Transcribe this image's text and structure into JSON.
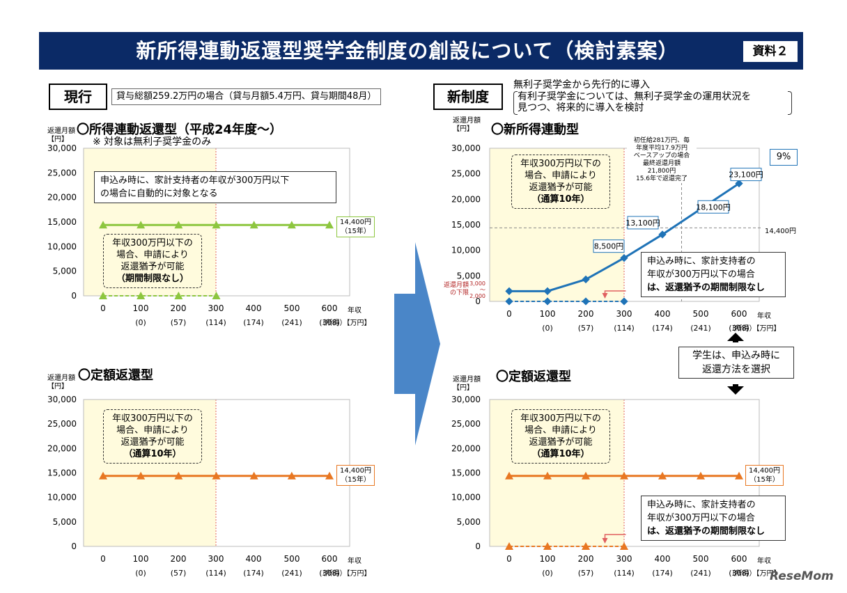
{
  "header": {
    "title": "新所得連動返還型奨学金制度の創設について（検討素案）",
    "doc_label": "資料２"
  },
  "left": {
    "section_label": "現行",
    "condition": "貸与総額259.2万円の場合（貸与月額5.4万円、貸与期間48月）"
  },
  "right": {
    "section_label": "新制度",
    "intro_line1": "無利子奨学金から先行的に導入",
    "intro_line2": "有利子奨学金については、無利子奨学金の運用状況を",
    "intro_line3": "見つつ、将来的に導入を検討"
  },
  "select_note": {
    "line1": "学生は、申込み時に",
    "line2": "返還方法を選択"
  },
  "common": {
    "yunit_line1": "返還月額",
    "yunit_line2": "【円】",
    "income_label": "年収",
    "income_unit": "（所得）【万円】",
    "x_ticks": [
      "0",
      "100",
      "200",
      "300",
      "400",
      "500",
      "600"
    ],
    "x_subticks": [
      "(0)",
      "(57)",
      "(114)",
      "(174)",
      "(241)",
      "(308)"
    ],
    "y_ticks": [
      "0",
      "5,000",
      "10,000",
      "15,000",
      "20,000",
      "25,000",
      "30,000"
    ]
  },
  "texts": {
    "c1_title": "〇所得連動返還型（平成24年度～）",
    "c1_subtitle": "※ 対象は無利子奨学金のみ",
    "c1_info_line1": "申込み時に、家計支持者の年収が300万円以下",
    "c1_info_line2": "の場合に自動的に対象となる",
    "c1_dash_line1": "年収300万円以下の",
    "c1_dash_line2": "場合、申請により",
    "c1_dash_line3": "返還猶予が可能",
    "c1_dash_line4": "（期間制限なし）",
    "end_label_line1": "14,400円",
    "end_label_line2": "（15年）",
    "c2_title": "〇定額返還型",
    "c2_dash_line1": "年収300万円以下の",
    "c2_dash_line2": "場合、申請により",
    "c2_dash_line3": "返還猶予が可能",
    "c2_dash_line4": "（通算10年）",
    "c3_title": "〇新所得連動型",
    "c3_dash_line1": "年収300万円以下の",
    "c3_dash_line2": "場合、申請により",
    "c3_dash_line3": "返還猶予が可能",
    "c3_dash_line4": "（通算10年）",
    "c3_note_line1": "初任給281万円、毎",
    "c3_note_line2": "年度平均17.9万円",
    "c3_note_line3": "ベースアップの場合",
    "c3_note_line4": "最終返還月額",
    "c3_note_line5": "21,800円",
    "c3_note_line6": "15.6年で返還完了",
    "c3_rate": "9%",
    "c3_ref_line": "14,400円",
    "c3_info_line1": "申込み時に、家計支持者の",
    "c3_info_line2": "年収が300万円以下の場合",
    "c3_info_line3": "は、返還猶予の期間制限なし",
    "c3_min_line1": "返還月額",
    "c3_min_line2": "の下限",
    "c3_min_val1": "3,000",
    "c3_min_tilde": "～",
    "c3_min_val2": "2,000",
    "c4_title": "〇定額返還型",
    "c4_dash_line1": "年収300万円以下の",
    "c4_dash_line2": "場合、申請により",
    "c4_dash_line3": "返還猶予が可能",
    "c4_dash_line4": "（通算10年）",
    "c4_info_line1": "申込み時に、家計支持者の",
    "c4_info_line2": "年収が300万円以下の場合",
    "c4_info_line3": "は、返還猶予の期間制限なし"
  },
  "watermark": "ReseMom",
  "chart_data": [
    {
      "type": "line",
      "title": "〇所得連動返還型（平成24年度～）",
      "xlabel": "年収（所得）【万円】",
      "ylabel": "返還月額【円】",
      "x": [
        0,
        100,
        200,
        300,
        400,
        500,
        600
      ],
      "ylim": [
        0,
        30000
      ],
      "grid": false,
      "color": "#8dc63f",
      "series": [
        {
          "values": [
            14400,
            14400,
            14400,
            14400,
            14400,
            14400,
            14400
          ]
        },
        {
          "x": [
            0,
            100,
            200,
            300
          ],
          "values": [
            0,
            0,
            0,
            0
          ]
        }
      ],
      "annotations": [
        "14,400円（15年）"
      ]
    },
    {
      "type": "line",
      "title": "〇定額返還型",
      "xlabel": "年収（所得）【万円】",
      "ylabel": "返還月額【円】",
      "x": [
        0,
        100,
        200,
        300,
        400,
        500,
        600
      ],
      "ylim": [
        0,
        30000
      ],
      "grid": false,
      "color": "#e87722",
      "series": [
        {
          "values": [
            14400,
            14400,
            14400,
            14400,
            14400,
            14400,
            14400
          ]
        }
      ],
      "annotations": [
        "14,400円（15年）"
      ]
    },
    {
      "type": "line",
      "title": "〇新所得連動型",
      "xlabel": "年収（所得）【万円】",
      "ylabel": "返還月額【円】",
      "x": [
        0,
        100,
        200,
        300,
        400,
        500,
        600
      ],
      "ylim": [
        0,
        30000
      ],
      "grid": false,
      "color": "#1f73b7",
      "series": [
        {
          "values": [
            2000,
            2000,
            4300,
            8500,
            13100,
            18100,
            23100
          ],
          "data_labels": [
            null,
            null,
            null,
            "8,500円",
            "13,100円",
            "18,100円",
            "23,100円"
          ]
        },
        {
          "x": [
            0,
            100,
            200,
            300
          ],
          "values": [
            0,
            0,
            0,
            0
          ]
        }
      ],
      "reference_line": 14400,
      "annotations": [
        "9%",
        "14,400円"
      ]
    },
    {
      "type": "line",
      "title": "〇定額返還型",
      "xlabel": "年収（所得）【万円】",
      "ylabel": "返還月額【円】",
      "x": [
        0,
        100,
        200,
        300,
        400,
        500,
        600
      ],
      "ylim": [
        0,
        30000
      ],
      "grid": false,
      "color": "#e87722",
      "series": [
        {
          "values": [
            14400,
            14400,
            14400,
            14400,
            14400,
            14400,
            14400
          ]
        },
        {
          "x": [
            0,
            100,
            200,
            300
          ],
          "values": [
            0,
            0,
            0,
            0
          ]
        }
      ],
      "annotations": [
        "14,400円（15年）"
      ]
    }
  ]
}
